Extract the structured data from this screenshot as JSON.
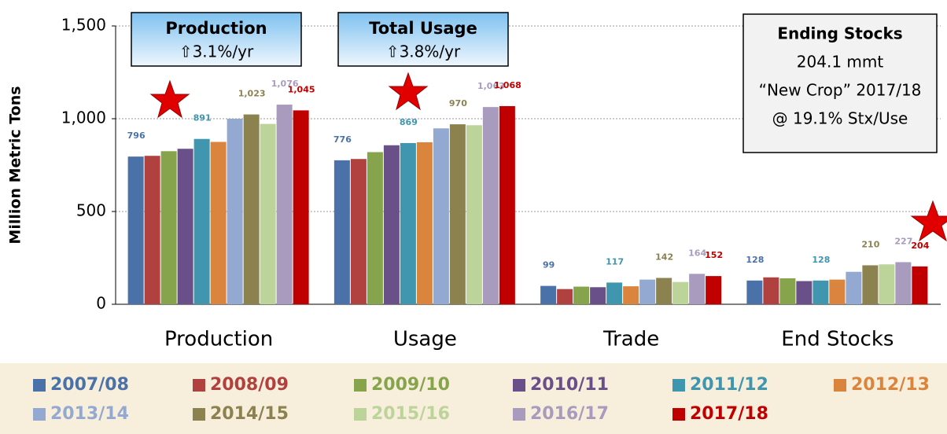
{
  "chart_data": {
    "type": "bar",
    "y_label": "Million Metric Tons",
    "categories": [
      "Production",
      "Usage",
      "Trade",
      "End Stocks"
    ],
    "ylim": [
      0,
      1500
    ],
    "yticks": [
      0,
      500,
      {
        "value": 1000,
        "label": "1,000"
      },
      {
        "value": 1500,
        "label": "1,500"
      }
    ],
    "grid": true,
    "series": [
      {
        "name": "2007/08",
        "color": "#4a72a8",
        "values": [
          796,
          776,
          99,
          128
        ],
        "value_labels": [
          "796",
          "776",
          "99",
          "128"
        ]
      },
      {
        "name": "2008/09",
        "color": "#b0413e",
        "values": [
          800,
          783,
          82,
          145
        ]
      },
      {
        "name": "2009/10",
        "color": "#86a44b",
        "values": [
          825,
          820,
          95,
          140
        ]
      },
      {
        "name": "2010/11",
        "color": "#6a5088",
        "values": [
          838,
          857,
          92,
          125
        ]
      },
      {
        "name": "2011/12",
        "color": "#3f96ae",
        "values": [
          891,
          869,
          117,
          128
        ],
        "value_labels": [
          "891",
          "869",
          "117",
          "128"
        ]
      },
      {
        "name": "2012/13",
        "color": "#db843d",
        "values": [
          875,
          873,
          97,
          133
        ]
      },
      {
        "name": "2013/14",
        "color": "#94a9d1",
        "values": [
          1000,
          948,
          133,
          175
        ]
      },
      {
        "name": "2014/15",
        "color": "#8c8250",
        "values": [
          1023,
          970,
          142,
          210
        ],
        "value_labels": [
          "1,023",
          "970",
          "142",
          "210"
        ]
      },
      {
        "name": "2015/16",
        "color": "#bcd39a",
        "values": [
          972,
          965,
          120,
          215
        ]
      },
      {
        "name": "2016/17",
        "color": "#a99bbd",
        "values": [
          1076,
          1063,
          164,
          227
        ],
        "value_labels": [
          "1,076",
          "1,063",
          "164",
          "227"
        ]
      },
      {
        "name": "2017/18",
        "color": "#c00000",
        "values": [
          1045,
          1068,
          152,
          204
        ],
        "value_labels": [
          "1,045",
          "1,068",
          "152",
          "204"
        ]
      }
    ],
    "annotations": {
      "production_title": "Production",
      "production_growth": "⇧3.1%/yr",
      "usage_title": "Total Usage",
      "usage_growth": "⇧3.8%/yr",
      "stocks_title": "Ending Stocks",
      "stocks_amount": "204.1 mmt",
      "stocks_crop": "“New Crop” 2017/18",
      "stocks_ratio": "@ 19.1% Stx/Use"
    }
  }
}
